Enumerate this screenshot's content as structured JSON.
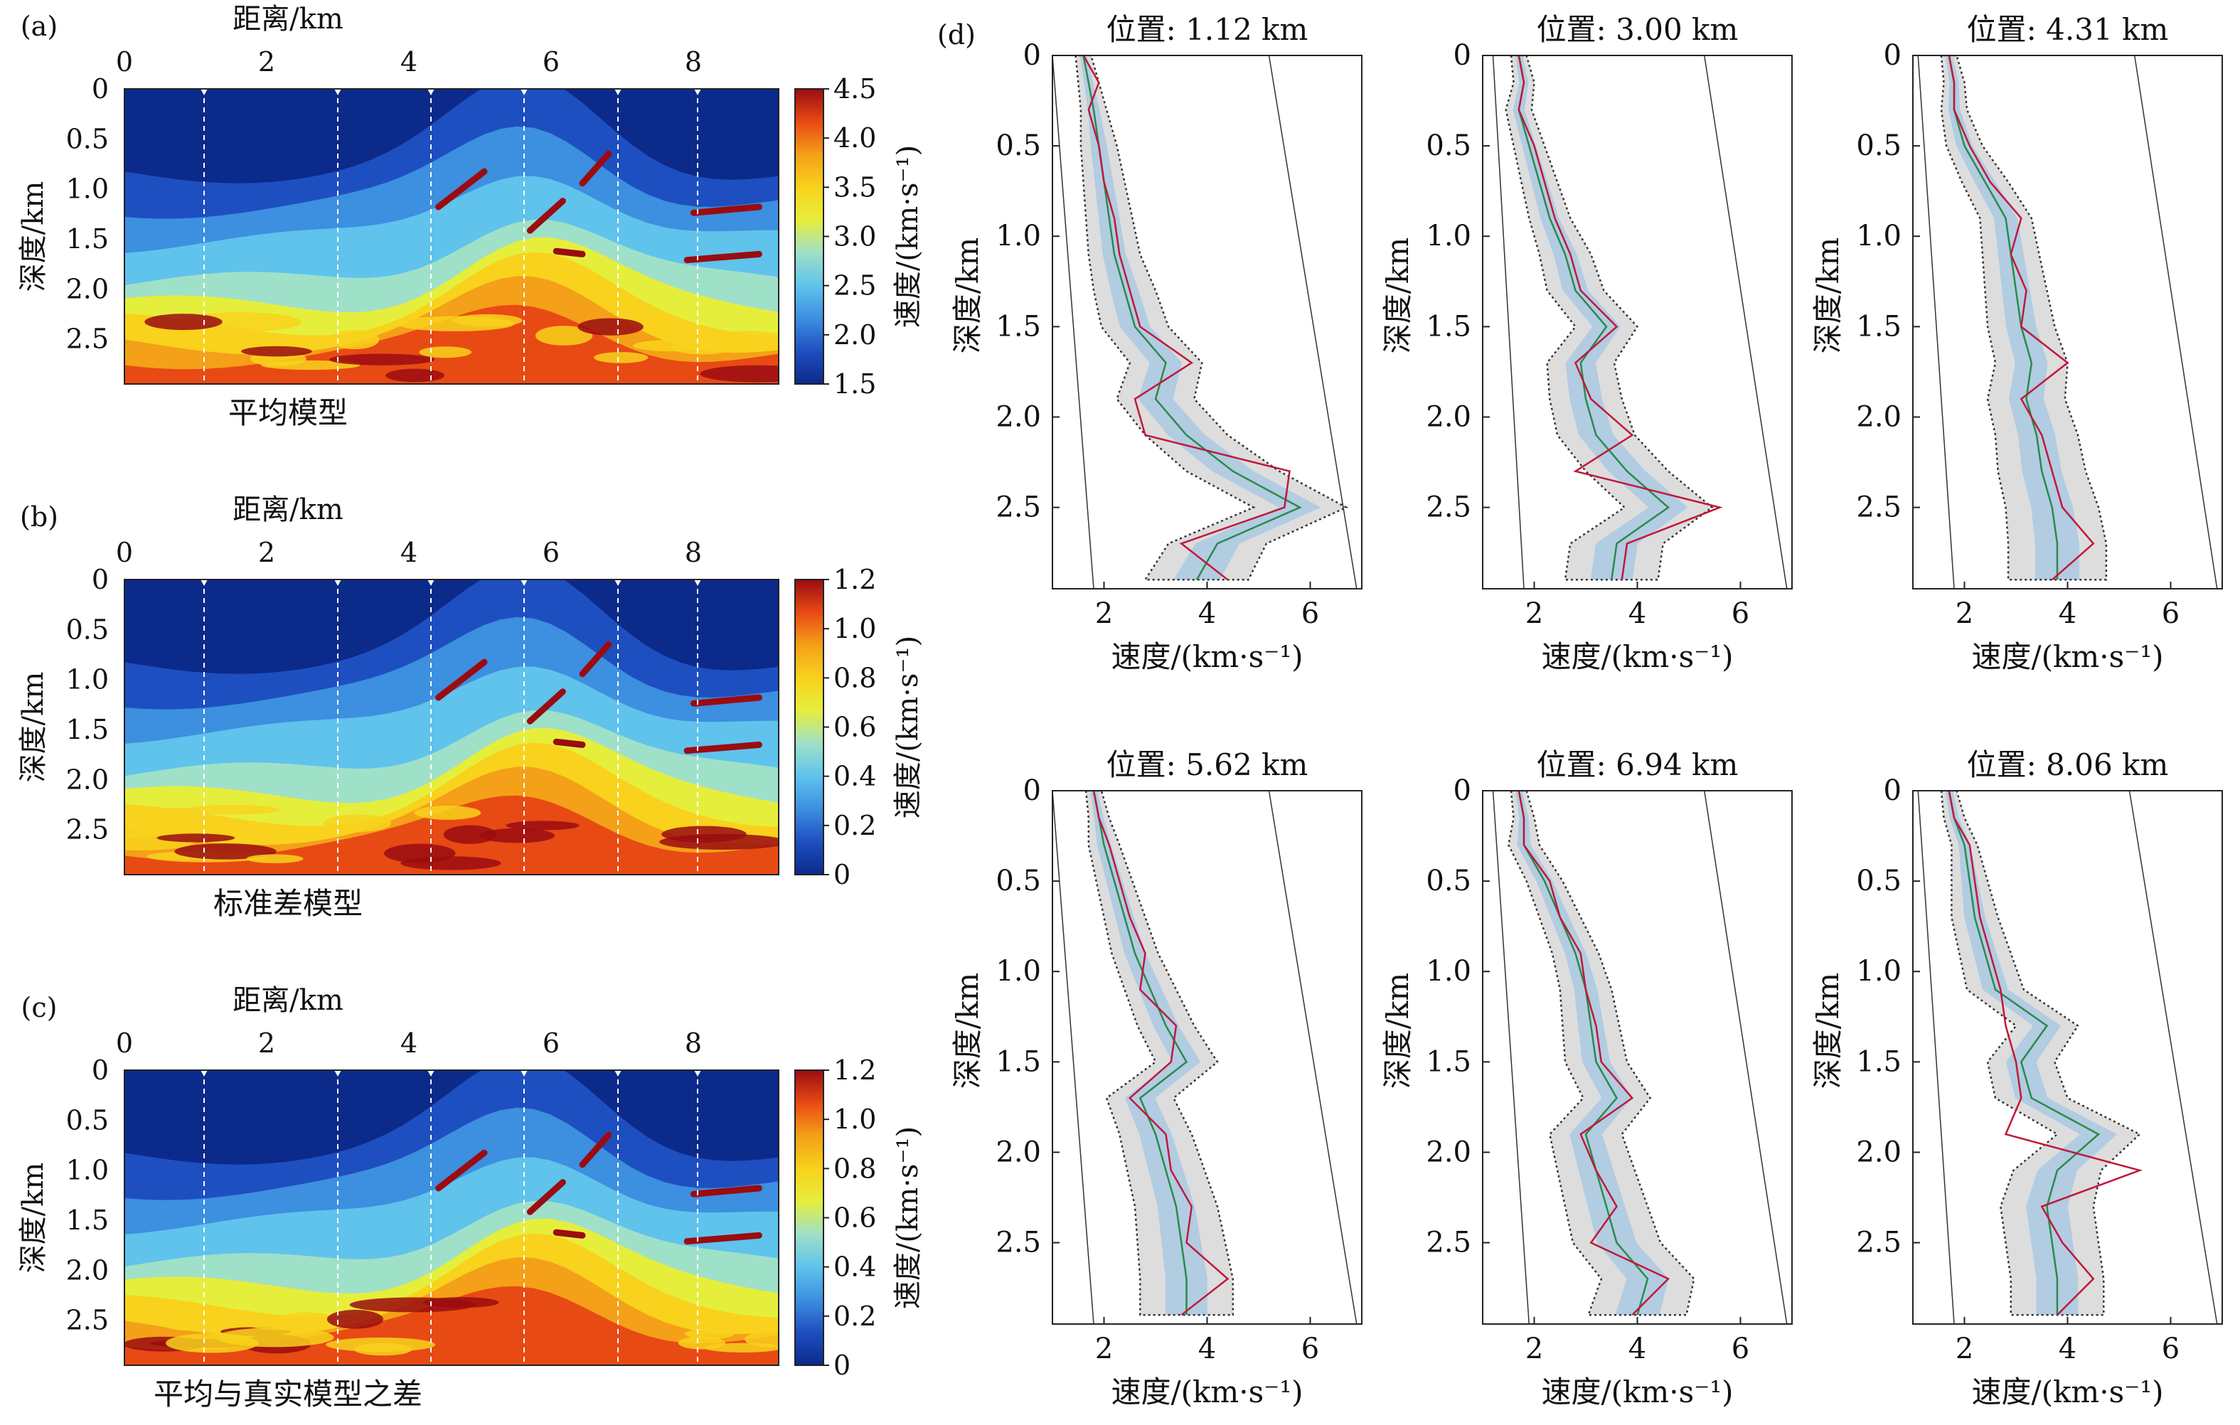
{
  "colors": {
    "colormap": [
      "#0b2a8a",
      "#1e4fc0",
      "#3d8fe0",
      "#5fc3ec",
      "#9fe0c8",
      "#e6ee3c",
      "#f8d21c",
      "#f4a018",
      "#e84a14",
      "#9a0c10"
    ],
    "mean_line": "#c0183a",
    "true_line": "#2a8a4a",
    "band_outer": "#d9d9d9",
    "band_inner": "#a8c8e4",
    "envelope": "#333333"
  },
  "panels_left": [
    {
      "label": "(a)",
      "x_title": "距离/km",
      "y_title": "深度/km",
      "caption": "平均模型",
      "cbar_title": "速度/(km·s⁻¹)",
      "cbar_ticks": [
        "4.5",
        "4.0",
        "3.5",
        "3.0",
        "2.5",
        "2.0",
        "1.5"
      ],
      "x_ticks": [
        "0",
        "2",
        "4",
        "6",
        "8"
      ],
      "y_ticks": [
        "0",
        "0.5",
        "1.0",
        "1.5",
        "2.0",
        "2.5"
      ]
    },
    {
      "label": "(b)",
      "x_title": "距离/km",
      "y_title": "深度/km",
      "caption": "标准差模型",
      "cbar_title": "速度/(km·s⁻¹)",
      "cbar_ticks": [
        "1.2",
        "1.0",
        "0.8",
        "0.6",
        "0.4",
        "0.2",
        "0"
      ],
      "x_ticks": [
        "0",
        "2",
        "4",
        "6",
        "8"
      ],
      "y_ticks": [
        "0",
        "0.5",
        "1.0",
        "1.5",
        "2.0",
        "2.5"
      ]
    },
    {
      "label": "(c)",
      "x_title": "距离/km",
      "y_title": "深度/km",
      "caption": "平均与真实模型之差",
      "cbar_title": "速度/(km·s⁻¹)",
      "cbar_ticks": [
        "1.2",
        "1.0",
        "0.8",
        "0.6",
        "0.4",
        "0.2",
        "0"
      ],
      "x_ticks": [
        "0",
        "2",
        "4",
        "6",
        "8"
      ],
      "y_ticks": [
        "0",
        "0.5",
        "1.0",
        "1.5",
        "2.0",
        "2.5"
      ]
    }
  ],
  "panel_d_label": "(d)",
  "chart_data": [
    {
      "type": "heatmap",
      "title": "平均模型",
      "xlabel": "距离/km",
      "ylabel": "深度/km",
      "xlim": [
        0,
        9.2
      ],
      "ylim": [
        0,
        2.95
      ],
      "colorbar_range": [
        1.5,
        4.5
      ],
      "profile_positions_km": [
        1.12,
        3.0,
        4.31,
        5.62,
        6.94,
        8.06
      ]
    },
    {
      "type": "heatmap",
      "title": "标准差模型",
      "xlabel": "距离/km",
      "ylabel": "深度/km",
      "xlim": [
        0,
        9.2
      ],
      "ylim": [
        0,
        2.95
      ],
      "colorbar_range": [
        0,
        1.2
      ],
      "profile_positions_km": [
        1.12,
        3.0,
        4.31,
        5.62,
        6.94,
        8.06
      ]
    },
    {
      "type": "heatmap",
      "title": "平均与真实模型之差",
      "xlabel": "距离/km",
      "ylabel": "深度/km",
      "xlim": [
        0,
        9.2
      ],
      "ylim": [
        0,
        2.95
      ],
      "colorbar_range": [
        0,
        1.2
      ],
      "profile_positions_km": [
        1.12,
        3.0,
        4.31,
        5.62,
        6.94,
        8.06
      ]
    },
    {
      "type": "line",
      "title": "位置: 1.12 km",
      "xlabel": "速度/(km·s⁻¹)",
      "ylabel": "深度/km",
      "xlim": [
        1,
        7
      ],
      "ylim": [
        2.95,
        0
      ],
      "x_ticks": [
        "2",
        "4",
        "6"
      ],
      "y_ticks": [
        "0",
        "0.5",
        "1.0",
        "1.5",
        "2.0",
        "2.5"
      ],
      "depth": [
        0,
        0.15,
        0.3,
        0.5,
        0.7,
        0.9,
        1.1,
        1.3,
        1.5,
        1.7,
        1.9,
        2.1,
        2.3,
        2.5,
        2.7,
        2.9
      ],
      "mean": [
        1.6,
        1.7,
        1.8,
        1.9,
        2.0,
        2.1,
        2.2,
        2.4,
        2.6,
        3.2,
        3.0,
        3.6,
        4.5,
        5.8,
        4.2,
        3.8
      ],
      "true": [
        1.6,
        1.9,
        1.7,
        1.9,
        2.0,
        2.2,
        2.3,
        2.5,
        2.7,
        3.7,
        2.6,
        2.8,
        5.6,
        5.5,
        3.5,
        4.4
      ],
      "spread": [
        0.15,
        0.2,
        0.25,
        0.35,
        0.4,
        0.45,
        0.5,
        0.6,
        0.65,
        0.7,
        0.75,
        0.8,
        0.9,
        0.9,
        0.95,
        1.0
      ],
      "limit_left": [
        1.0,
        1.8
      ],
      "limit_right": [
        5.2,
        6.9
      ]
    },
    {
      "type": "line",
      "title": "位置: 3.00 km",
      "xlabel": "速度/(km·s⁻¹)",
      "ylabel": "深度/km",
      "xlim": [
        1,
        7
      ],
      "ylim": [
        2.95,
        0
      ],
      "x_ticks": [
        "2",
        "4",
        "6"
      ],
      "y_ticks": [
        "0",
        "0.5",
        "1.0",
        "1.5",
        "2.0",
        "2.5"
      ],
      "depth": [
        0,
        0.15,
        0.3,
        0.5,
        0.7,
        0.9,
        1.1,
        1.3,
        1.5,
        1.7,
        1.9,
        2.1,
        2.3,
        2.5,
        2.7,
        2.9
      ],
      "mean": [
        1.7,
        1.8,
        1.7,
        1.9,
        2.1,
        2.3,
        2.6,
        2.8,
        3.4,
        2.9,
        3.0,
        3.2,
        3.8,
        4.6,
        3.6,
        3.5
      ],
      "true": [
        1.7,
        1.8,
        1.7,
        2.0,
        2.2,
        2.4,
        2.7,
        2.9,
        3.6,
        2.8,
        3.1,
        3.9,
        2.8,
        5.6,
        3.8,
        3.7
      ],
      "spread": [
        0.15,
        0.2,
        0.25,
        0.3,
        0.35,
        0.4,
        0.5,
        0.55,
        0.6,
        0.65,
        0.7,
        0.75,
        0.8,
        0.85,
        0.9,
        0.9
      ],
      "limit_left": [
        1.2,
        1.8
      ],
      "limit_right": [
        5.3,
        6.9
      ]
    },
    {
      "type": "line",
      "title": "位置: 4.31 km",
      "xlabel": "速度/(km·s⁻¹)",
      "ylabel": "深度/km",
      "xlim": [
        1,
        7
      ],
      "ylim": [
        2.95,
        0
      ],
      "x_ticks": [
        "2",
        "4",
        "6"
      ],
      "y_ticks": [
        "0",
        "0.5",
        "1.0",
        "1.5",
        "2.0",
        "2.5"
      ],
      "depth": [
        0,
        0.15,
        0.3,
        0.5,
        0.7,
        0.9,
        1.1,
        1.3,
        1.5,
        1.7,
        1.9,
        2.1,
        2.3,
        2.5,
        2.7,
        2.9
      ],
      "mean": [
        1.7,
        1.8,
        1.8,
        2.0,
        2.4,
        2.8,
        2.9,
        3.0,
        3.1,
        3.3,
        3.2,
        3.4,
        3.5,
        3.7,
        3.8,
        3.8
      ],
      "true": [
        1.7,
        1.8,
        1.8,
        2.1,
        2.5,
        3.1,
        2.9,
        3.2,
        3.1,
        4.0,
        3.1,
        3.5,
        3.7,
        3.9,
        4.5,
        3.7
      ],
      "spread": [
        0.15,
        0.2,
        0.25,
        0.35,
        0.45,
        0.5,
        0.55,
        0.6,
        0.65,
        0.7,
        0.75,
        0.8,
        0.85,
        0.9,
        0.95,
        0.95
      ],
      "limit_left": [
        1.1,
        1.8
      ],
      "limit_right": [
        5.3,
        6.9
      ]
    },
    {
      "type": "line",
      "title": "位置: 5.62 km",
      "xlabel": "速度/(km·s⁻¹)",
      "ylabel": "深度/km",
      "xlim": [
        1,
        7
      ],
      "ylim": [
        2.95,
        0
      ],
      "x_ticks": [
        "2",
        "4",
        "6"
      ],
      "y_ticks": [
        "0",
        "0.5",
        "1.0",
        "1.5",
        "2.0",
        "2.5"
      ],
      "depth": [
        0,
        0.15,
        0.3,
        0.5,
        0.7,
        0.9,
        1.1,
        1.3,
        1.5,
        1.7,
        1.9,
        2.1,
        2.3,
        2.5,
        2.7,
        2.9
      ],
      "mean": [
        1.8,
        1.9,
        2.0,
        2.2,
        2.4,
        2.6,
        2.9,
        3.2,
        3.6,
        2.7,
        3.0,
        3.2,
        3.4,
        3.5,
        3.6,
        3.6
      ],
      "true": [
        1.8,
        1.9,
        2.1,
        2.3,
        2.5,
        2.8,
        2.7,
        3.4,
        3.3,
        2.5,
        3.2,
        3.3,
        3.7,
        3.6,
        4.4,
        3.5
      ],
      "spread": [
        0.15,
        0.2,
        0.3,
        0.35,
        0.4,
        0.45,
        0.5,
        0.55,
        0.6,
        0.65,
        0.7,
        0.75,
        0.8,
        0.85,
        0.9,
        0.9
      ],
      "limit_left": [
        1.0,
        1.8
      ],
      "limit_right": [
        5.2,
        6.9
      ]
    },
    {
      "type": "line",
      "title": "位置: 6.94 km",
      "xlabel": "速度/(km·s⁻¹)",
      "ylabel": "深度/km",
      "xlim": [
        1,
        7
      ],
      "ylim": [
        2.95,
        0
      ],
      "x_ticks": [
        "2",
        "4",
        "6"
      ],
      "y_ticks": [
        "0",
        "0.5",
        "1.0",
        "1.5",
        "2.0",
        "2.5"
      ],
      "depth": [
        0,
        0.15,
        0.3,
        0.5,
        0.7,
        0.9,
        1.1,
        1.3,
        1.5,
        1.7,
        1.9,
        2.1,
        2.3,
        2.5,
        2.7,
        2.9
      ],
      "mean": [
        1.7,
        1.8,
        1.8,
        2.2,
        2.5,
        2.8,
        3.0,
        3.1,
        3.2,
        3.6,
        3.0,
        3.2,
        3.4,
        3.6,
        4.2,
        4.0
      ],
      "true": [
        1.7,
        1.8,
        1.8,
        2.3,
        2.5,
        2.9,
        3.0,
        3.2,
        3.3,
        3.9,
        2.9,
        3.2,
        3.6,
        3.1,
        4.6,
        3.9
      ],
      "spread": [
        0.15,
        0.2,
        0.3,
        0.35,
        0.4,
        0.45,
        0.5,
        0.55,
        0.6,
        0.65,
        0.7,
        0.75,
        0.8,
        0.85,
        0.9,
        0.95
      ],
      "limit_left": [
        1.2,
        1.9
      ],
      "limit_right": [
        5.3,
        6.9
      ]
    },
    {
      "type": "line",
      "title": "位置: 8.06 km",
      "xlabel": "速度/(km·s⁻¹)",
      "ylabel": "深度/km",
      "xlim": [
        1,
        7
      ],
      "ylim": [
        2.95,
        0
      ],
      "x_ticks": [
        "2",
        "4",
        "6"
      ],
      "y_ticks": [
        "0",
        "0.5",
        "1.0",
        "1.5",
        "2.0",
        "2.5"
      ],
      "depth": [
        0,
        0.15,
        0.3,
        0.5,
        0.7,
        0.9,
        1.1,
        1.3,
        1.5,
        1.7,
        1.9,
        2.1,
        2.3,
        2.5,
        2.7,
        2.9
      ],
      "mean": [
        1.7,
        1.8,
        2.0,
        2.1,
        2.2,
        2.4,
        2.6,
        3.6,
        3.1,
        3.3,
        4.6,
        3.8,
        3.6,
        3.7,
        3.8,
        3.8
      ],
      "true": [
        1.7,
        1.8,
        2.1,
        2.2,
        2.3,
        2.5,
        2.7,
        2.8,
        3.0,
        3.1,
        2.8,
        5.4,
        3.5,
        3.9,
        4.5,
        3.8
      ],
      "spread": [
        0.15,
        0.2,
        0.25,
        0.35,
        0.45,
        0.5,
        0.55,
        0.6,
        0.65,
        0.7,
        0.8,
        0.85,
        0.9,
        0.9,
        0.9,
        0.9
      ],
      "limit_left": [
        1.1,
        1.8
      ],
      "limit_right": [
        5.2,
        6.9
      ]
    }
  ]
}
